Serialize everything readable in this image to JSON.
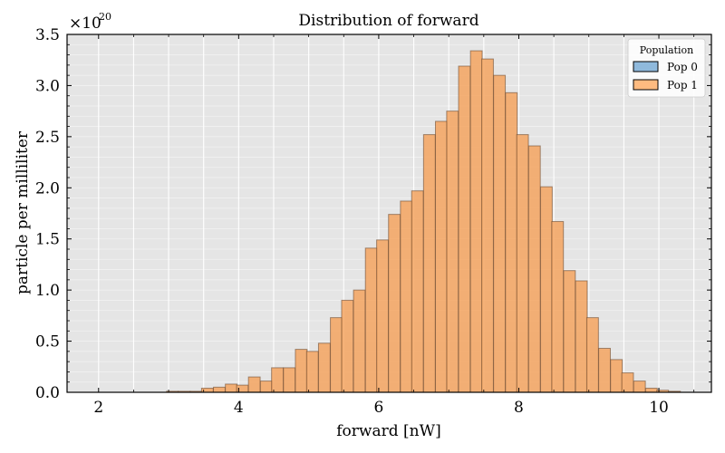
{
  "chart_data": {
    "type": "bar",
    "title": "Distribution of forward",
    "xlabel": "forward [nW]",
    "ylabel": "particle per milliliter",
    "y_offset_label": "×10",
    "y_offset_exponent": "20",
    "xlim": [
      1.55,
      10.75
    ],
    "ylim": [
      0,
      3.5
    ],
    "x_ticks": [
      2,
      4,
      6,
      8,
      10
    ],
    "x_tick_labels": [
      "2",
      "4",
      "6",
      "8",
      "10"
    ],
    "y_ticks": [
      0.0,
      0.5,
      1.0,
      1.5,
      2.0,
      2.5,
      3.0,
      3.5
    ],
    "y_tick_labels": [
      "0.0",
      "0.5",
      "1.0",
      "1.5",
      "2.0",
      "2.5",
      "3.0",
      "3.5"
    ],
    "grid": true,
    "background": "#e5e5e5",
    "legend": {
      "title": "Population",
      "position": "upper right",
      "entries": [
        {
          "label": "Pop 0",
          "color": "#8fb9dc"
        },
        {
          "label": "Pop 1",
          "color": "#ffbb80"
        }
      ]
    },
    "bin_width": 0.167,
    "series": [
      {
        "name": "Pop 0",
        "color": "#8fb9dc",
        "bin_starts": [],
        "values": []
      },
      {
        "name": "Pop 1",
        "color": "#f4a460",
        "bin_starts": [
          2.97,
          3.14,
          3.31,
          3.47,
          3.64,
          3.81,
          3.97,
          4.14,
          4.31,
          4.47,
          4.64,
          4.81,
          4.97,
          5.14,
          5.31,
          5.47,
          5.64,
          5.81,
          5.97,
          6.14,
          6.31,
          6.47,
          6.64,
          6.81,
          6.97,
          7.14,
          7.31,
          7.47,
          7.64,
          7.81,
          7.97,
          8.14,
          8.31,
          8.47,
          8.64,
          8.81,
          8.97,
          9.14,
          9.31,
          9.47,
          9.64,
          9.81,
          9.97,
          10.14
        ],
        "values": [
          0.01,
          0.01,
          0.01,
          0.04,
          0.05,
          0.08,
          0.07,
          0.15,
          0.11,
          0.24,
          0.24,
          0.42,
          0.4,
          0.48,
          0.73,
          0.9,
          1.0,
          1.41,
          1.49,
          1.74,
          1.87,
          1.97,
          2.52,
          2.65,
          2.75,
          3.19,
          3.34,
          3.26,
          3.1,
          2.93,
          2.52,
          2.41,
          2.01,
          1.67,
          1.19,
          1.09,
          0.73,
          0.43,
          0.32,
          0.19,
          0.11,
          0.04,
          0.02,
          0.01
        ]
      }
    ]
  }
}
